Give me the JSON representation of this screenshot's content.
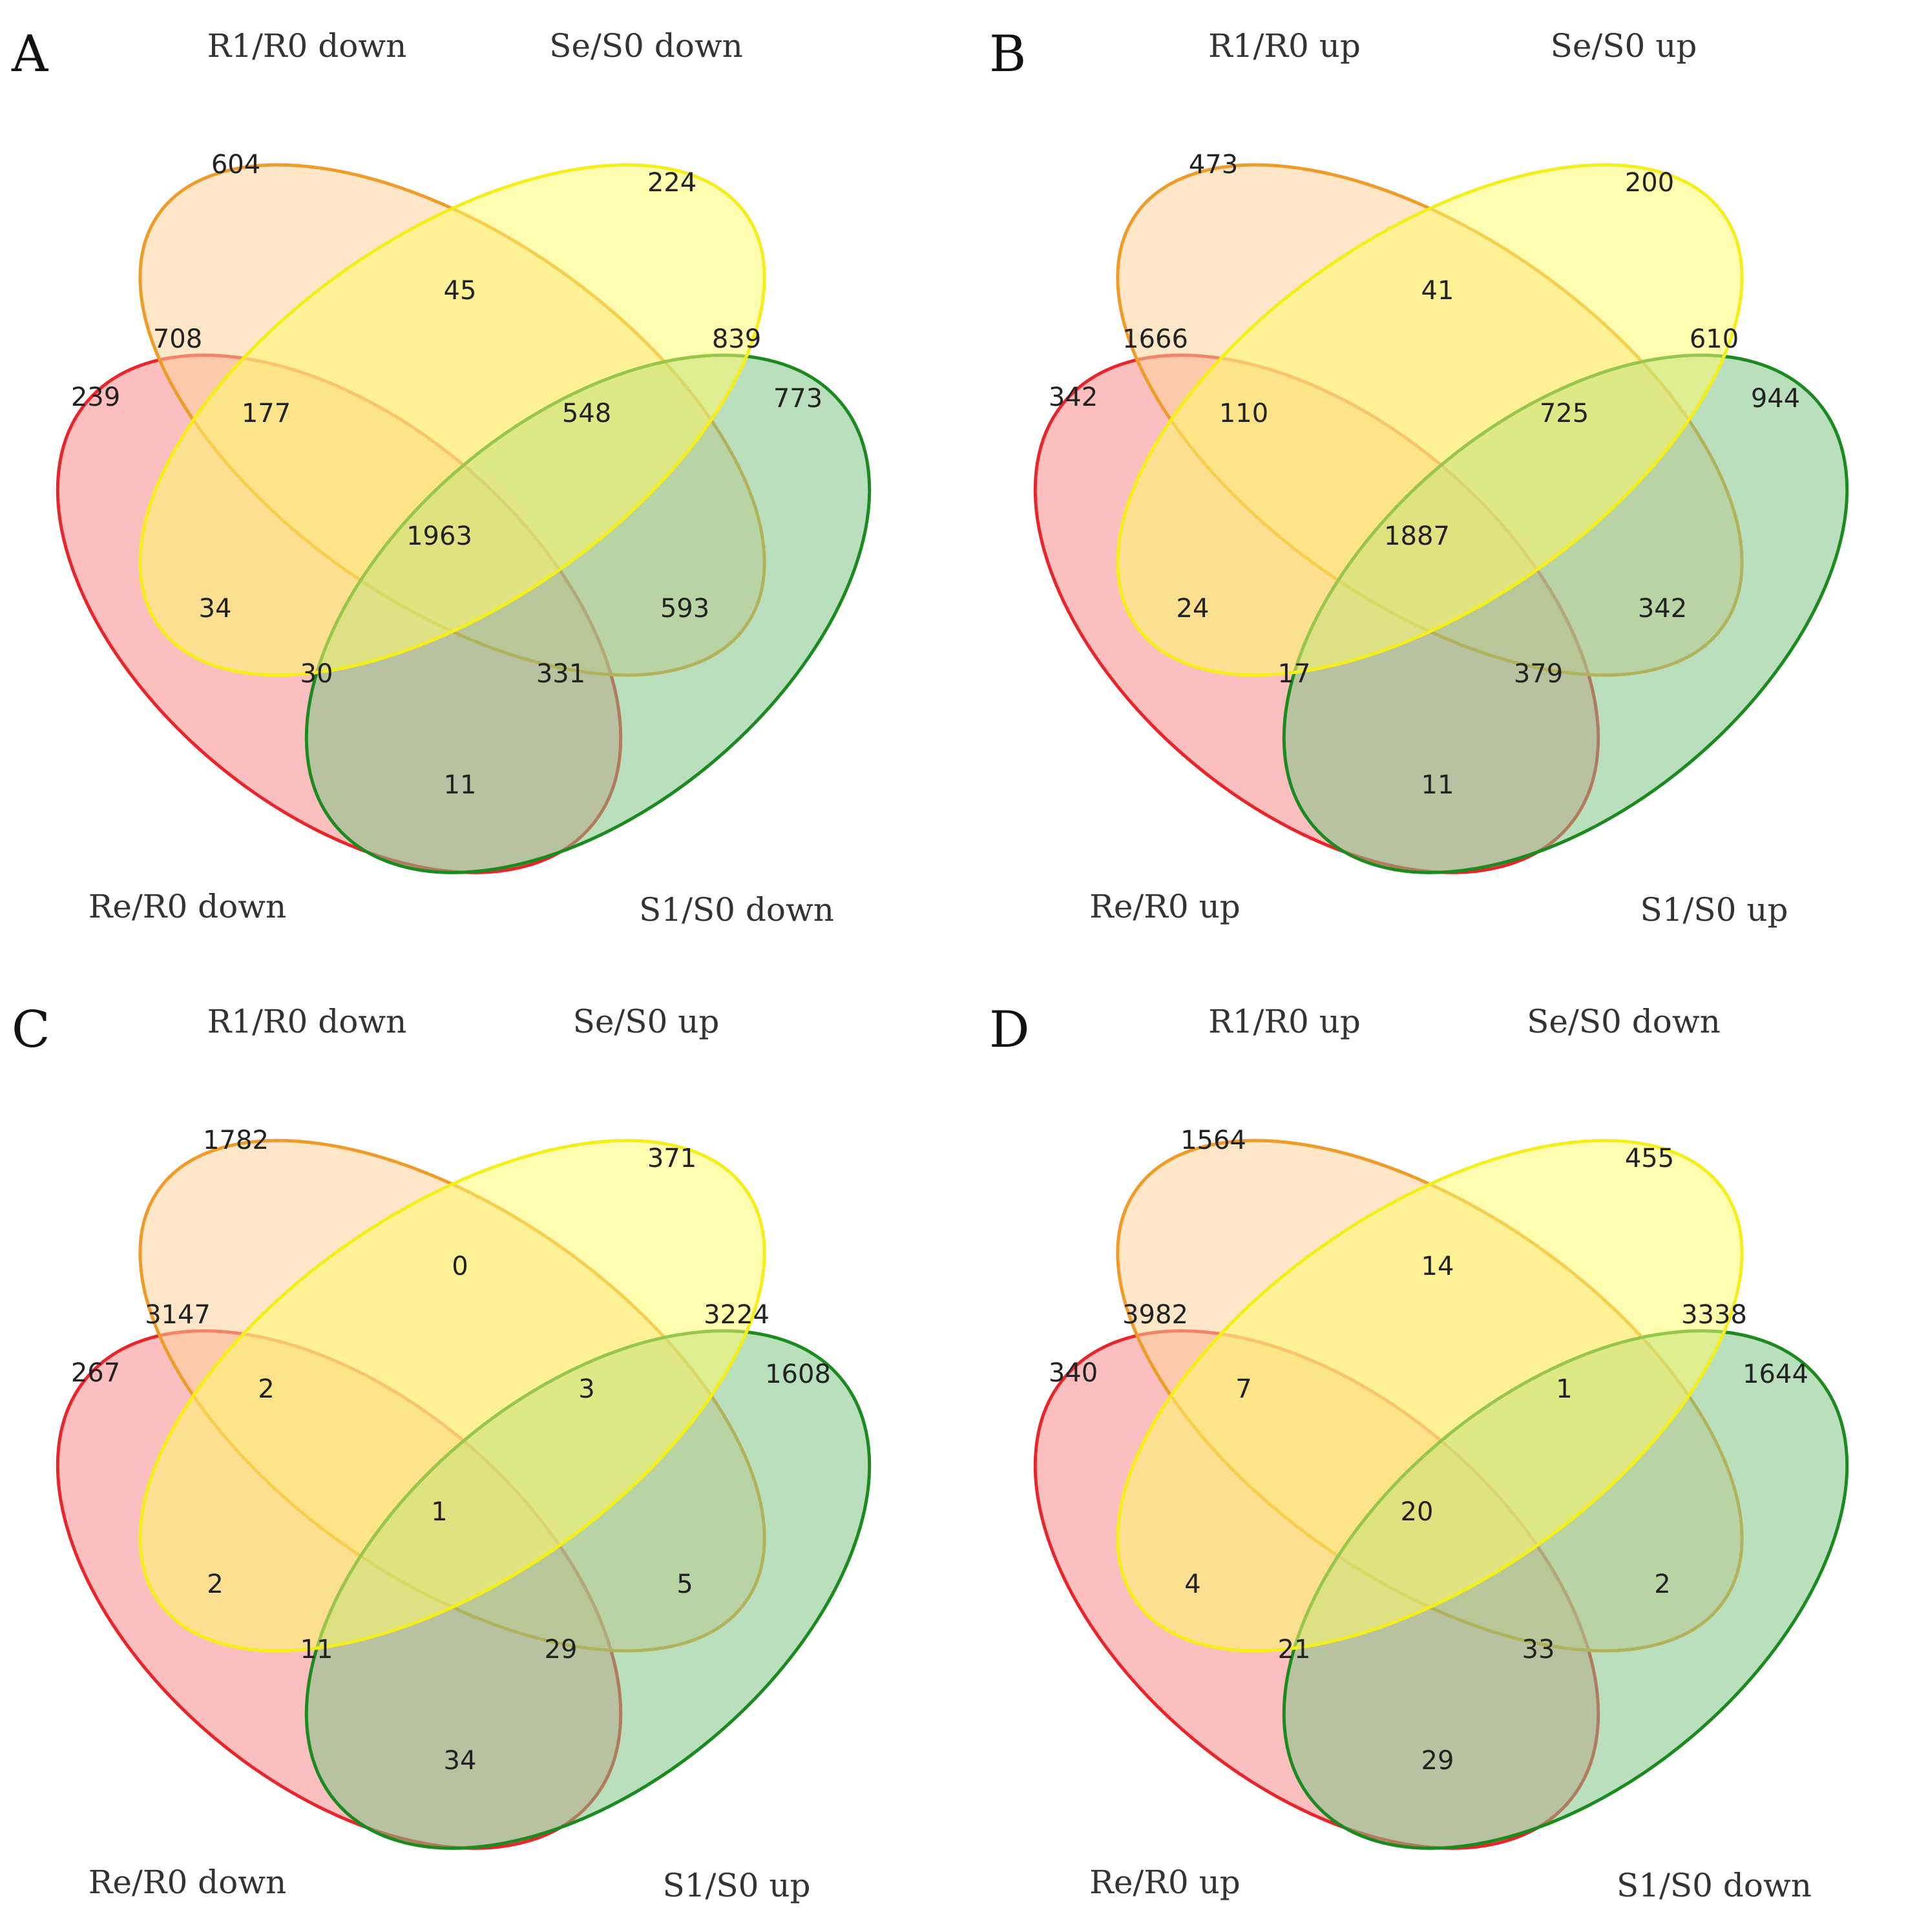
{
  "figure": {
    "colors": {
      "re": {
        "fill": "#f98a8a",
        "stroke": "#e8252b"
      },
      "r1": {
        "fill": "#fcd39a",
        "stroke": "#f09b27"
      },
      "se": {
        "fill": "#fdf96e",
        "stroke": "#f4ee1a"
      },
      "s1": {
        "fill": "#80c487",
        "stroke": "#1b8a1f"
      }
    },
    "panels": [
      {
        "letter": "A",
        "labels": {
          "r1": "R1/R0 down",
          "se": "Se/S0 down",
          "re": "Re/R0 down",
          "s1": "S1/S0 down"
        },
        "counts": {
          "r1_only": "604",
          "se_only": "224",
          "re_only": "239",
          "s1_only": "773",
          "r1_se": "45",
          "r1_re": "708",
          "se_s1": "839",
          "re_s1": "11",
          "r1_se_re": "177",
          "r1_se_s1": "548",
          "all": "1963",
          "se_re": "34",
          "r1_s1": "593",
          "se_re_s1": "30",
          "r1_re_s1": "331"
        }
      },
      {
        "letter": "B",
        "labels": {
          "r1": "R1/R0 up",
          "se": "Se/S0 up",
          "re": "Re/R0 up",
          "s1": "S1/S0 up"
        },
        "counts": {
          "r1_only": "473",
          "se_only": "200",
          "re_only": "342",
          "s1_only": "944",
          "r1_se": "41",
          "r1_re": "1666",
          "se_s1": "610",
          "re_s1": "11",
          "r1_se_re": "110",
          "r1_se_s1": "725",
          "all": "1887",
          "se_re": "24",
          "r1_s1": "342",
          "se_re_s1": "17",
          "r1_re_s1": "379"
        }
      },
      {
        "letter": "C",
        "labels": {
          "r1": "R1/R0 down",
          "se": "Se/S0 up",
          "re": "Re/R0 down",
          "s1": "S1/S0 up"
        },
        "counts": {
          "r1_only": "1782",
          "se_only": "371",
          "re_only": "267",
          "s1_only": "1608",
          "r1_se": "0",
          "r1_re": "3147",
          "se_s1": "3224",
          "re_s1": "34",
          "r1_se_re": "2",
          "r1_se_s1": "3",
          "all": "1",
          "se_re": "2",
          "r1_s1": "5",
          "se_re_s1": "11",
          "r1_re_s1": "29"
        }
      },
      {
        "letter": "D",
        "labels": {
          "r1": "R1/R0 up",
          "se": "Se/S0 down",
          "re": "Re/R0 up",
          "s1": "S1/S0 down"
        },
        "counts": {
          "r1_only": "1564",
          "se_only": "455",
          "re_only": "340",
          "s1_only": "1644",
          "r1_se": "14",
          "r1_re": "3982",
          "se_s1": "3338",
          "re_s1": "29",
          "r1_se_re": "7",
          "r1_se_s1": "1",
          "all": "20",
          "se_re": "4",
          "r1_s1": "2",
          "se_re_s1": "21",
          "r1_re_s1": "33"
        }
      }
    ]
  }
}
